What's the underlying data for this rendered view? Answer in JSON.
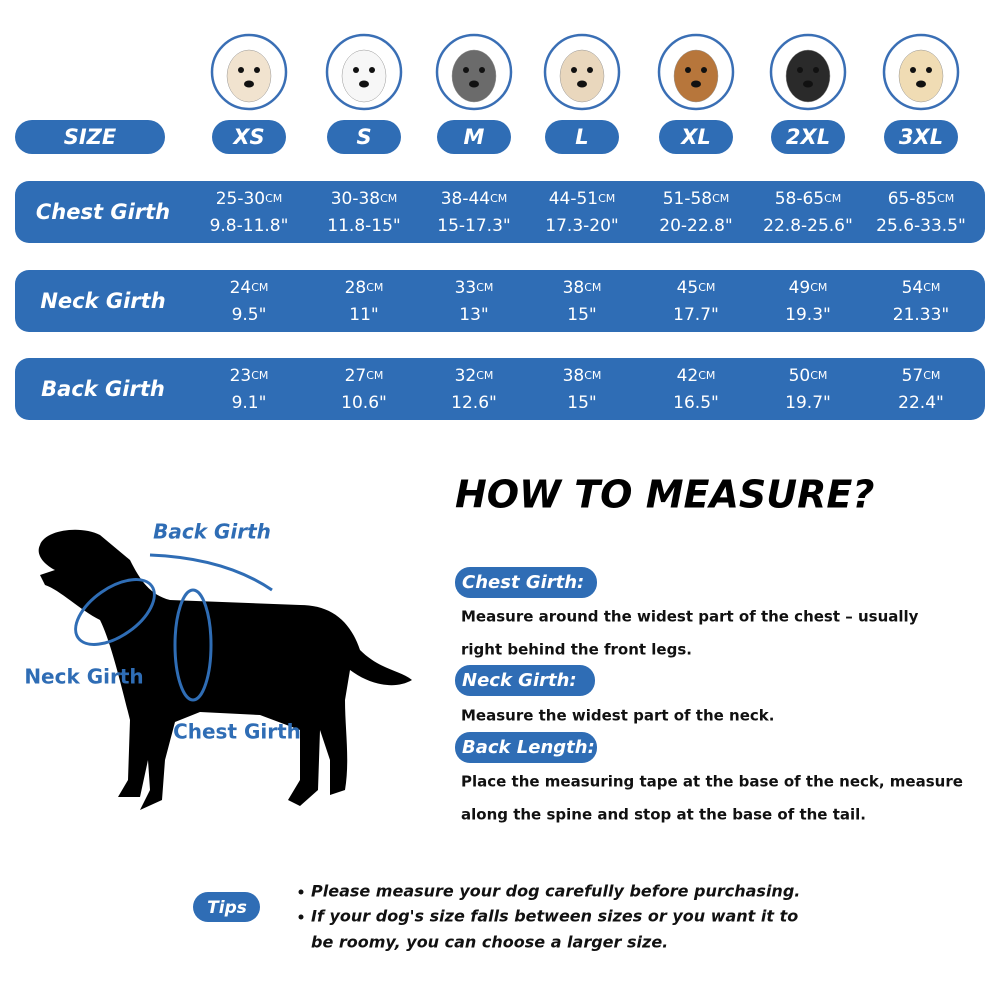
{
  "sizes": [
    "XS",
    "S",
    "M",
    "L",
    "XL",
    "2XL",
    "3XL"
  ],
  "size_label": "SIZE",
  "rows": [
    {
      "label": "Chest Girth",
      "cells": [
        {
          "cm": "25-30",
          "unit": "CM",
          "inch": "9.8-11.8\""
        },
        {
          "cm": "30-38",
          "unit": "CM",
          "inch": "11.8-15\""
        },
        {
          "cm": "38-44",
          "unit": "CM",
          "inch": "15-17.3\""
        },
        {
          "cm": "44-51",
          "unit": "CM",
          "inch": "17.3-20\""
        },
        {
          "cm": "51-58",
          "unit": "CM",
          "inch": "20-22.8\""
        },
        {
          "cm": "58-65",
          "unit": "CM",
          "inch": "22.8-25.6\""
        },
        {
          "cm": "65-85",
          "unit": "CM",
          "inch": "25.6-33.5\""
        }
      ]
    },
    {
      "label": "Neck Girth",
      "cells": [
        {
          "cm": "24",
          "unit": "CM",
          "inch": "9.5\""
        },
        {
          "cm": "28",
          "unit": "CM",
          "inch": "11\""
        },
        {
          "cm": "33",
          "unit": "CM",
          "inch": "13\""
        },
        {
          "cm": "38",
          "unit": "CM",
          "inch": "15\""
        },
        {
          "cm": "45",
          "unit": "CM",
          "inch": "17.7\""
        },
        {
          "cm": "49",
          "unit": "CM",
          "inch": "19.3\""
        },
        {
          "cm": "54",
          "unit": "CM",
          "inch": "21.33\""
        }
      ]
    },
    {
      "label": "Back Girth",
      "cells": [
        {
          "cm": "23",
          "unit": "CM",
          "inch": "9.1\""
        },
        {
          "cm": "27",
          "unit": "CM",
          "inch": "10.6\""
        },
        {
          "cm": "32",
          "unit": "CM",
          "inch": "12.6\""
        },
        {
          "cm": "38",
          "unit": "CM",
          "inch": "15\""
        },
        {
          "cm": "42",
          "unit": "CM",
          "inch": "16.5\""
        },
        {
          "cm": "50",
          "unit": "CM",
          "inch": "19.7\""
        },
        {
          "cm": "57",
          "unit": "CM",
          "inch": "22.4\""
        }
      ]
    }
  ],
  "diagram": {
    "back": "Back Girth",
    "neck": "Neck Girth",
    "chest": "Chest Girth"
  },
  "howto": {
    "title": "HOW TO MEASURE?",
    "items": [
      {
        "heading": "Chest Girth:",
        "lines": [
          "Measure around the widest part of the chest – usually",
          "right behind the front legs."
        ]
      },
      {
        "heading": "Neck Girth:",
        "lines": [
          "Measure the widest part of the neck."
        ]
      },
      {
        "heading": "Back Length:",
        "lines": [
          "Place the measuring tape at the base of the neck, measure",
          "along the spine and stop at the base of the tail."
        ]
      }
    ]
  },
  "tips": {
    "label": "Tips",
    "lines": [
      "Please measure your dog carefully before purchasing.",
      "If your dog's size falls between sizes or you want it to",
      "be roomy, you can choose a larger size."
    ]
  }
}
